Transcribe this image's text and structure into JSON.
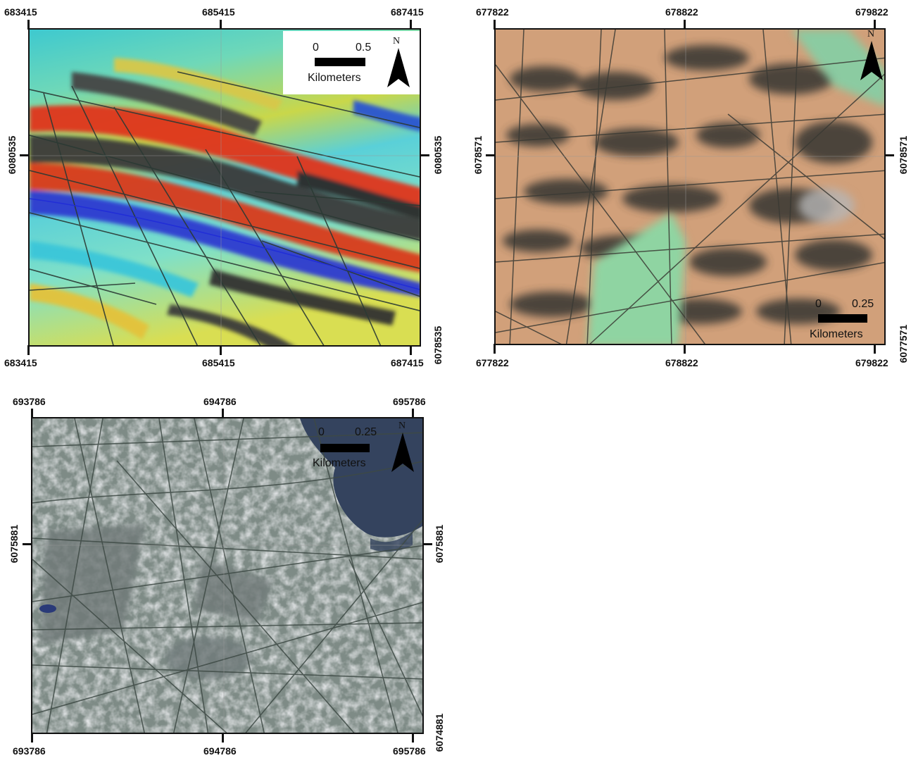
{
  "maps": [
    {
      "id": "map-a",
      "x_ticks": [
        "683415",
        "685415",
        "687415"
      ],
      "y_ticks": [
        "6080535",
        "6078535"
      ],
      "scale": {
        "zero": "0",
        "max": "0.5",
        "unit": "Kilometers"
      },
      "north": "N"
    },
    {
      "id": "map-b",
      "x_ticks": [
        "677822",
        "678822",
        "679822"
      ],
      "y_ticks": [
        "6078571",
        "6077571"
      ],
      "scale": {
        "zero": "0",
        "max": "0.25",
        "unit": "Kilometers"
      },
      "north": "N"
    },
    {
      "id": "map-c",
      "x_ticks": [
        "693786",
        "694786",
        "695786"
      ],
      "y_ticks": [
        "6075881",
        "6074881"
      ],
      "scale": {
        "zero": "0",
        "max": "0.25",
        "unit": "Kilometers"
      },
      "north": "N"
    }
  ]
}
